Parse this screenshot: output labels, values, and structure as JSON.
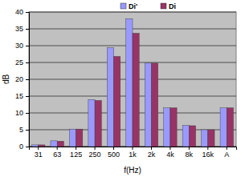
{
  "chart_data": {
    "type": "bar",
    "x_label": "f(Hz)",
    "y_label": "dB",
    "categories": [
      "31",
      "63",
      "125",
      "250",
      "500",
      "1k",
      "2k",
      "4k",
      "8k",
      "16k",
      "A"
    ],
    "series": [
      {
        "name": "Di'",
        "color": "#9999ff",
        "values": [
          0.5,
          1.7,
          5.2,
          14.0,
          29.4,
          38.0,
          24.8,
          11.5,
          6.3,
          5.0,
          11.5
        ]
      },
      {
        "name": "Di",
        "color": "#993366",
        "values": [
          0.5,
          1.6,
          5.2,
          13.7,
          26.8,
          33.7,
          24.8,
          11.5,
          6.2,
          5.0,
          11.5
        ]
      }
    ],
    "ylim": [
      0,
      40
    ],
    "yticks": [
      0,
      5,
      10,
      15,
      20,
      25,
      30,
      35,
      40
    ],
    "grid": true,
    "legend": "top"
  }
}
